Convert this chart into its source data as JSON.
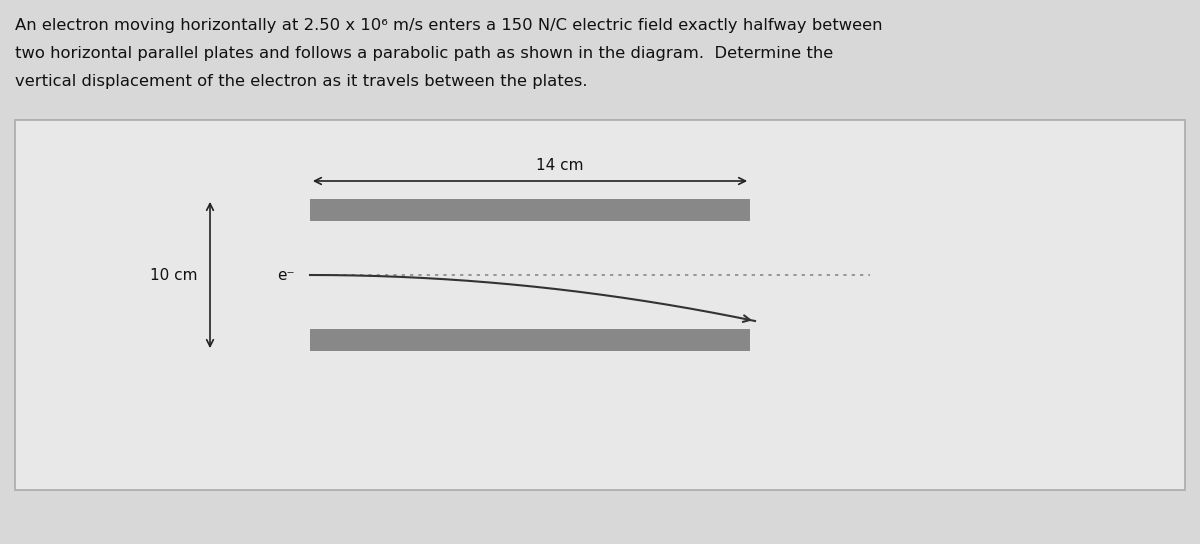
{
  "text_lines": [
    "An electron moving horizontally at 2.50 x 10⁶ m/s enters a 150 N/C electric field exactly halfway between",
    "two horizontal parallel plates and follows a parabolic path as shown in the diagram.  Determine the",
    "vertical displacement of the electron as it travels between the plates."
  ],
  "plate_label": "14 cm",
  "gap_label": "10 cm",
  "electron_label": "e⁻",
  "bg_color": "#d8d8d8",
  "box_bg": "#e8e8e8",
  "plate_color": "#888888",
  "text_color": "#111111",
  "arrow_color": "#222222",
  "parabola_color": "#333333",
  "dotted_color": "#888888"
}
